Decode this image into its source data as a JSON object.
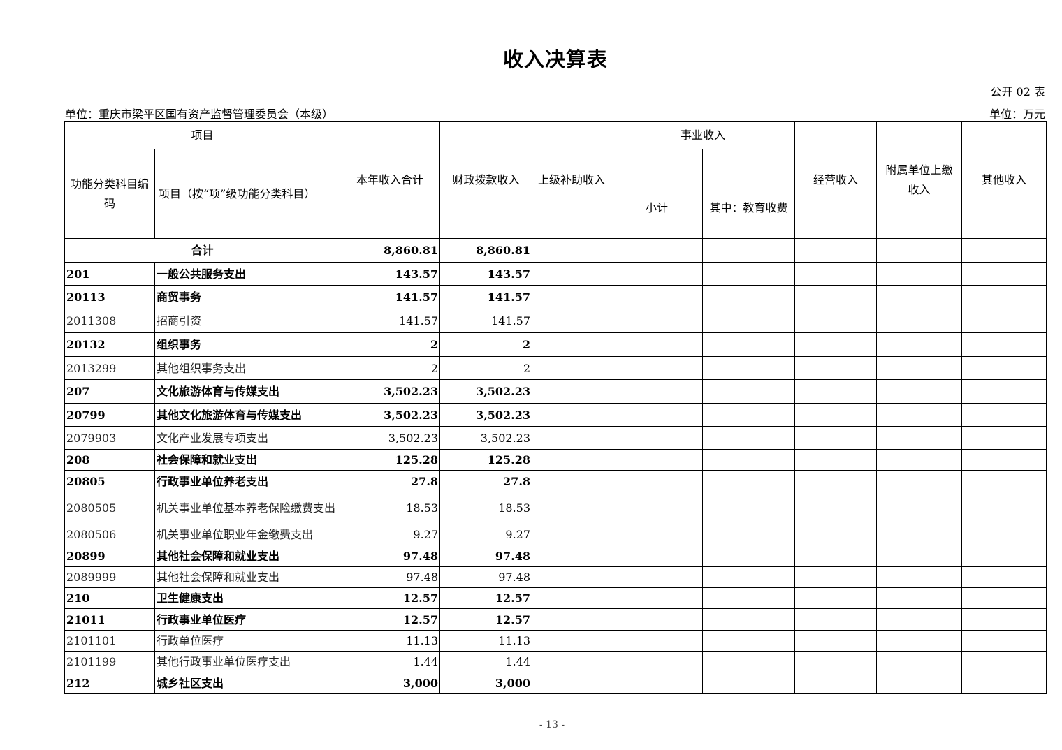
{
  "title": "收入决算表",
  "form_no": "公开 02 表",
  "unit_org": "单位：重庆市梁平区国有资产监督管理委员会（本级）",
  "unit_money": "单位：万元",
  "headers": {
    "item": "项目",
    "code": "功能分类科目编码",
    "name": "项目（按“项”级功能分类科目）",
    "total": "本年收入合计",
    "fiscal": "财政拨款收入",
    "superior": "上级补助收入",
    "business": "事业收入",
    "subtotal": "小计",
    "edu": "其中：教育收费",
    "operating": "经营收入",
    "affiliated": "附属单位上缴收入",
    "other": "其他收入"
  },
  "total_row": {
    "label": "合计",
    "total": "8,860.81",
    "fiscal": "8,860.81"
  },
  "rows": [
    {
      "code": "201",
      "name": "一般公共服务支出",
      "total": "143.57",
      "fiscal": "143.57",
      "bold": true
    },
    {
      "code": "20113",
      "name": "商贸事务",
      "total": "141.57",
      "fiscal": "141.57",
      "bold": true
    },
    {
      "code": "2011308",
      "name": "招商引资",
      "total": "141.57",
      "fiscal": "141.57",
      "bold": false
    },
    {
      "code": "20132",
      "name": "组织事务",
      "total": "2",
      "fiscal": "2",
      "bold": true
    },
    {
      "code": "2013299",
      "name": "其他组织事务支出",
      "total": "2",
      "fiscal": "2",
      "bold": false
    },
    {
      "code": "207",
      "name": "文化旅游体育与传媒支出",
      "total": "3,502.23",
      "fiscal": "3,502.23",
      "bold": true
    },
    {
      "code": "20799",
      "name": "其他文化旅游体育与传媒支出",
      "total": "3,502.23",
      "fiscal": "3,502.23",
      "bold": true
    },
    {
      "code": "2079903",
      "name": "文化产业发展专项支出",
      "total": "3,502.23",
      "fiscal": "3,502.23",
      "bold": false
    },
    {
      "code": "208",
      "name": "社会保障和就业支出",
      "total": "125.28",
      "fiscal": "125.28",
      "bold": true
    },
    {
      "code": "20805",
      "name": "行政事业单位养老支出",
      "total": "27.8",
      "fiscal": "27.8",
      "bold": true
    },
    {
      "code": "2080505",
      "name": "机关事业单位基本养老保险缴费支出",
      "total": "18.53",
      "fiscal": "18.53",
      "bold": false
    },
    {
      "code": "2080506",
      "name": "机关事业单位职业年金缴费支出",
      "total": "9.27",
      "fiscal": "9.27",
      "bold": false
    },
    {
      "code": "20899",
      "name": "其他社会保障和就业支出",
      "total": "97.48",
      "fiscal": "97.48",
      "bold": true
    },
    {
      "code": "2089999",
      "name": "其他社会保障和就业支出",
      "total": "97.48",
      "fiscal": "97.48",
      "bold": false
    },
    {
      "code": "210",
      "name": "卫生健康支出",
      "total": "12.57",
      "fiscal": "12.57",
      "bold": true
    },
    {
      "code": "21011",
      "name": "行政事业单位医疗",
      "total": "12.57",
      "fiscal": "12.57",
      "bold": true
    },
    {
      "code": "2101101",
      "name": "行政单位医疗",
      "total": "11.13",
      "fiscal": "11.13",
      "bold": false
    },
    {
      "code": "2101199",
      "name": "其他行政事业单位医疗支出",
      "total": "1.44",
      "fiscal": "1.44",
      "bold": false
    },
    {
      "code": "212",
      "name": "城乡社区支出",
      "total": "3,000",
      "fiscal": "3,000",
      "bold": true
    }
  ],
  "page_no": "- 13 -"
}
